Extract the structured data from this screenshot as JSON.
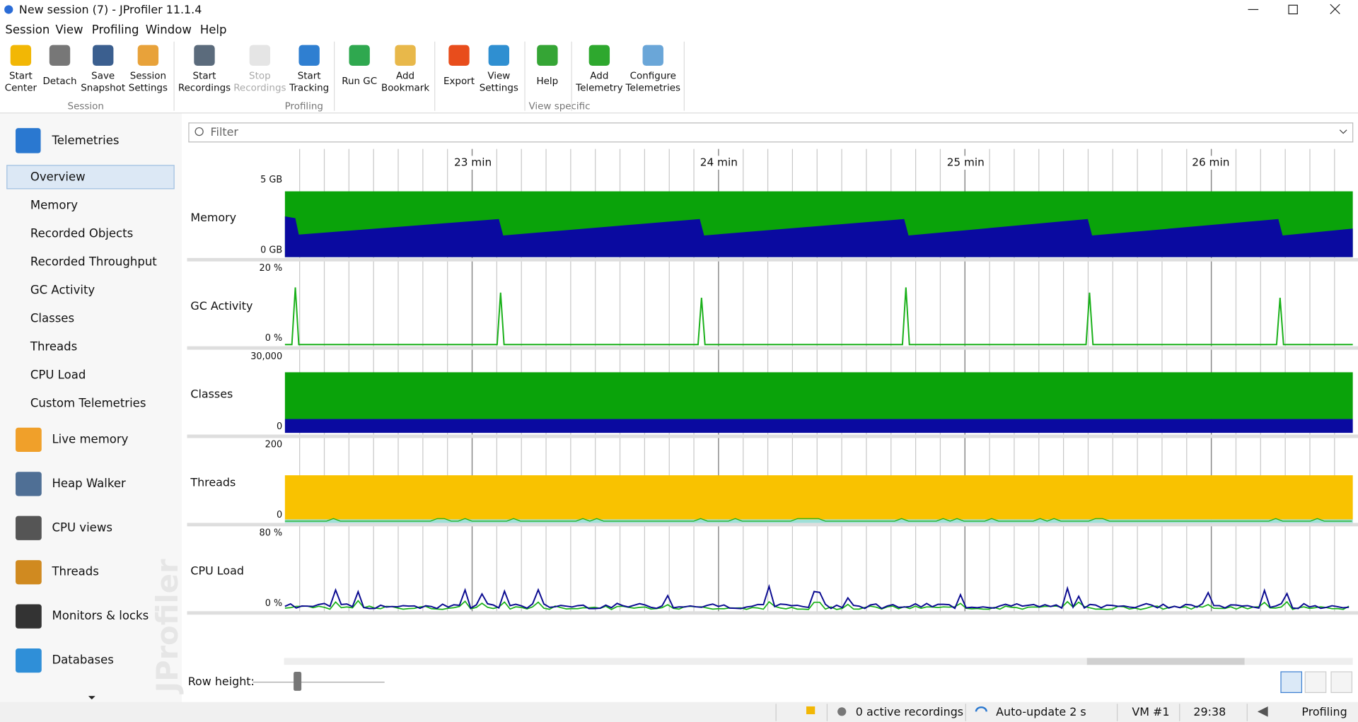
{
  "window": {
    "title": "New session (7) - JProfiler 11.1.4"
  },
  "menu": [
    "Session",
    "View",
    "Profiling",
    "Window",
    "Help"
  ],
  "toolbar": {
    "groups": [
      {
        "label": "Session",
        "buttons": [
          {
            "label": [
              "Start",
              "Center"
            ]
          },
          {
            "label": [
              "Detach"
            ]
          },
          {
            "label": [
              "Save",
              "Snapshot"
            ]
          },
          {
            "label": [
              "Session",
              "Settings"
            ]
          }
        ]
      },
      {
        "label": "Profiling",
        "buttons": [
          {
            "label": [
              "Start",
              "Recordings"
            ]
          },
          {
            "label": [
              "Stop",
              "Recordings"
            ],
            "disabled": true
          },
          {
            "label": [
              "Start",
              "Tracking"
            ]
          },
          {
            "label": [
              "Run GC"
            ]
          },
          {
            "label": [
              "Add",
              "Bookmark"
            ]
          }
        ]
      },
      {
        "label": "View specific",
        "buttons": [
          {
            "label": [
              "Export"
            ]
          },
          {
            "label": [
              "View",
              "Settings"
            ]
          },
          {
            "label": [
              "Help"
            ]
          },
          {
            "label": [
              "Add",
              "Telemetry"
            ]
          },
          {
            "label": [
              "Configure",
              "Telemetries"
            ]
          }
        ]
      }
    ]
  },
  "sidebar": {
    "header": "Telemetries",
    "items": [
      "Overview",
      "Memory",
      "Recorded Objects",
      "Recorded Throughput",
      "GC Activity",
      "Classes",
      "Threads",
      "CPU Load",
      "Custom Telemetries"
    ],
    "sections": [
      "Live memory",
      "Heap Walker",
      "CPU views",
      "Threads",
      "Monitors & locks",
      "Databases"
    ],
    "watermark": "JProfiler"
  },
  "filter": "Filter",
  "time_axis": [
    "23 min",
    "24 min",
    "25 min",
    "26 min"
  ],
  "telemetries": [
    {
      "name": "Memory",
      "max": "5 GB",
      "min": "0 GB"
    },
    {
      "name": "GC Activity",
      "max": "20 %",
      "min": "0 %"
    },
    {
      "name": "Classes",
      "max": "30,000",
      "min": "0"
    },
    {
      "name": "Threads",
      "max": "200",
      "min": "0"
    },
    {
      "name": "CPU Load",
      "max": "80 %",
      "min": "0 %"
    }
  ],
  "row_height_label": "Row height:",
  "status": [
    "0 active recordings",
    "Auto-update 2 s",
    "VM #1",
    "29:38",
    "Profiling"
  ]
}
